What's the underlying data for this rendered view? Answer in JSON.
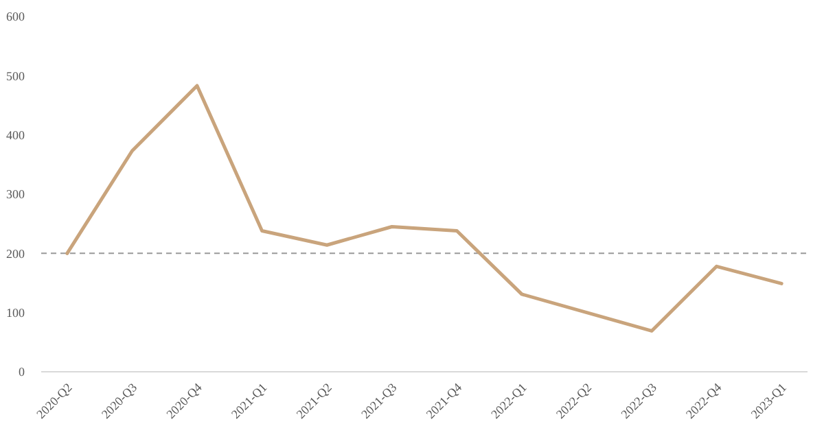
{
  "chart_data": {
    "type": "line",
    "categories": [
      "2020-Q2",
      "2020-Q3",
      "2020-Q4",
      "2021-Q1",
      "2021-Q2",
      "2021-Q3",
      "2021-Q4",
      "2022-Q1",
      "2022-Q2",
      "2022-Q3",
      "2022-Q4",
      "2023-Q1"
    ],
    "series": [
      {
        "color": "#c9a47c",
        "values": [
          200,
          373,
          483,
          238,
          214,
          245,
          238,
          131,
          100,
          69,
          178,
          149
        ]
      }
    ],
    "ylim": [
      0,
      600
    ],
    "yticks": [
      0,
      100,
      200,
      300,
      400,
      500,
      600
    ],
    "grid": false,
    "line_style": "solid",
    "marker": "none",
    "ref_lines": [
      {
        "axis": "y",
        "value": 200,
        "color": "#999999",
        "line_style": "dashed"
      }
    ]
  }
}
